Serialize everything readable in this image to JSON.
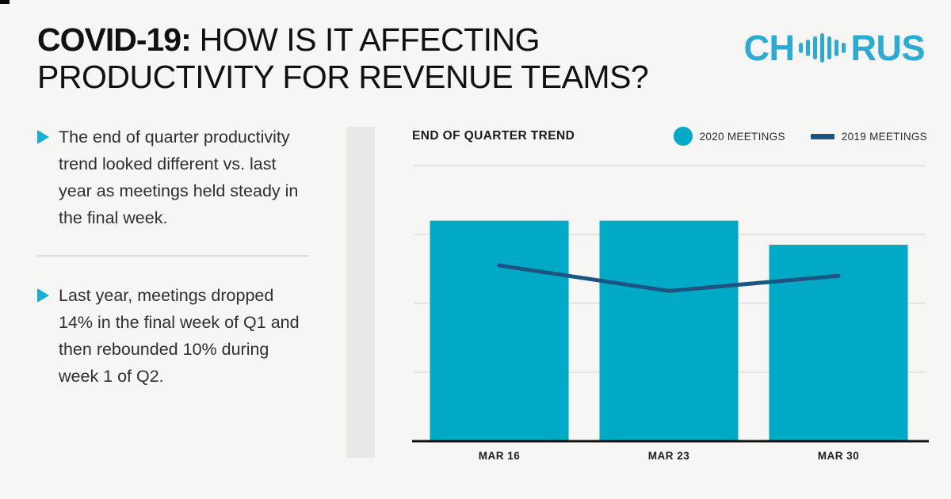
{
  "header": {
    "title_bold": "COVID-19:",
    "title_rest": "HOW IS IT AFFECTING PRODUCTIVITY FOR REVENUE TEAMS?",
    "logo_left": "CH",
    "logo_right": "RUS",
    "logo_icon": "soundwave-icon"
  },
  "bullets": [
    {
      "text": "The end of quarter productivity trend looked different vs. last year as meetings held steady in the final week."
    },
    {
      "text": "Last year, meetings dropped 14% in the final week of Q1 and then rebounded 10% during week 1 of Q2."
    }
  ],
  "chart_data": {
    "type": "bar",
    "title": "END OF QUARTER TREND",
    "categories": [
      "MAR 16",
      "MAR 23",
      "MAR 30"
    ],
    "series": [
      {
        "name": "2020 MEETINGS",
        "type": "bar",
        "color": "#00a9c5",
        "values": [
          3.2,
          3.2,
          2.85
        ]
      },
      {
        "name": "2019 MEETINGS",
        "type": "line",
        "color": "#1b5683",
        "values": [
          2.55,
          2.18,
          2.4
        ]
      }
    ],
    "xlabel": "",
    "ylabel": "",
    "ylim": [
      0,
      4
    ],
    "grid": "horizontal",
    "legend_position": "top-right",
    "y_axis_ticks": "unlabeled (values estimated from gridlines)"
  },
  "colors": {
    "bar_cyan": "#00a9c5",
    "line_blue": "#1b5683",
    "logo_cyan": "#29abd4",
    "marker_cyan": "#14b0d6",
    "background": "#f6f6f4",
    "gridline": "#e4e4e4",
    "divider": "#dcdcdc",
    "column_bar": "#e8e8e8"
  }
}
